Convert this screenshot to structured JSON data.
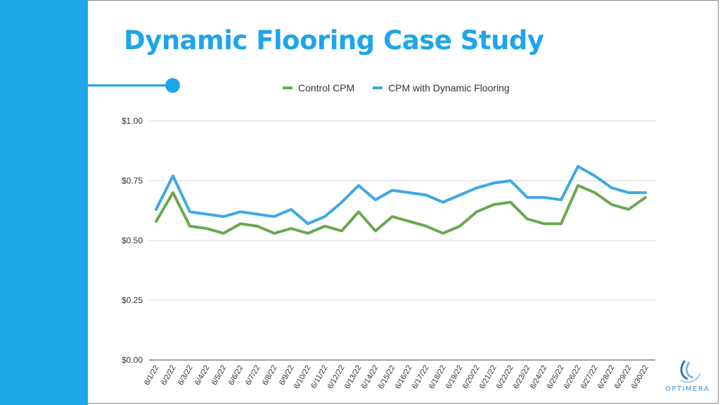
{
  "title": "Dynamic Flooring Case Study",
  "brand": {
    "name": "OPTIMERA"
  },
  "colors": {
    "accent": "#1ea5ea",
    "control": "#6aa84f",
    "dynamic": "#3ea8e5"
  },
  "chart_data": {
    "type": "line",
    "title": "",
    "xlabel": "",
    "ylabel": "",
    "ylim": [
      0,
      1
    ],
    "yticks": [
      "$0.00",
      "$0.25",
      "$0.50",
      "$0.75",
      "$1.00"
    ],
    "ytick_values": [
      0,
      0.25,
      0.5,
      0.75,
      1.0
    ],
    "grid": true,
    "legend_position": "top",
    "categories": [
      "6/1/22",
      "6/2/22",
      "6/3/22",
      "6/4/22",
      "6/5/22",
      "6/6/22",
      "6/7/22",
      "6/8/22",
      "6/9/22",
      "6/10/22",
      "6/11/22",
      "6/12/22",
      "6/13/22",
      "6/14/22",
      "6/15/22",
      "6/16/22",
      "6/17/22",
      "6/18/22",
      "6/19/22",
      "6/20/22",
      "6/21/22",
      "6/22/22",
      "6/23/22",
      "6/24/22",
      "6/25/22",
      "6/26/22",
      "6/27/22",
      "6/28/22",
      "6/29/22",
      "6/30/22"
    ],
    "series": [
      {
        "name": "Control CPM",
        "color": "#6aa84f",
        "values": [
          0.58,
          0.7,
          0.56,
          0.55,
          0.53,
          0.57,
          0.56,
          0.53,
          0.55,
          0.53,
          0.56,
          0.54,
          0.62,
          0.54,
          0.6,
          0.58,
          0.56,
          0.53,
          0.56,
          0.62,
          0.65,
          0.66,
          0.59,
          0.57,
          0.57,
          0.73,
          0.7,
          0.65,
          0.63,
          0.68
        ]
      },
      {
        "name": "CPM with Dynamic Flooring",
        "color": "#3ea8e5",
        "values": [
          0.63,
          0.77,
          0.62,
          0.61,
          0.6,
          0.62,
          0.61,
          0.6,
          0.63,
          0.57,
          0.6,
          0.66,
          0.73,
          0.67,
          0.71,
          0.7,
          0.69,
          0.66,
          0.69,
          0.72,
          0.74,
          0.75,
          0.68,
          0.68,
          0.67,
          0.81,
          0.77,
          0.72,
          0.7,
          0.7
        ]
      }
    ]
  }
}
